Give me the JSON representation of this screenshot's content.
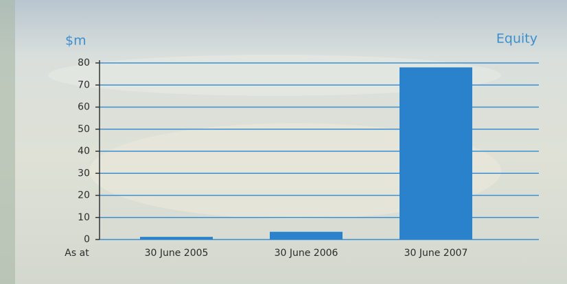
{
  "chart_data": {
    "type": "bar",
    "title": "Equity",
    "y_label": "$m",
    "x_label": "As at",
    "categories": [
      "30 June 2005",
      "30 June 2006",
      "30 June 2007"
    ],
    "values": [
      1.2,
      3.5,
      78
    ],
    "color": "#2a82cc",
    "ylim": [
      0,
      80
    ],
    "yticks": [
      0,
      10,
      20,
      30,
      40,
      50,
      60,
      70,
      80
    ],
    "grid": true
  }
}
